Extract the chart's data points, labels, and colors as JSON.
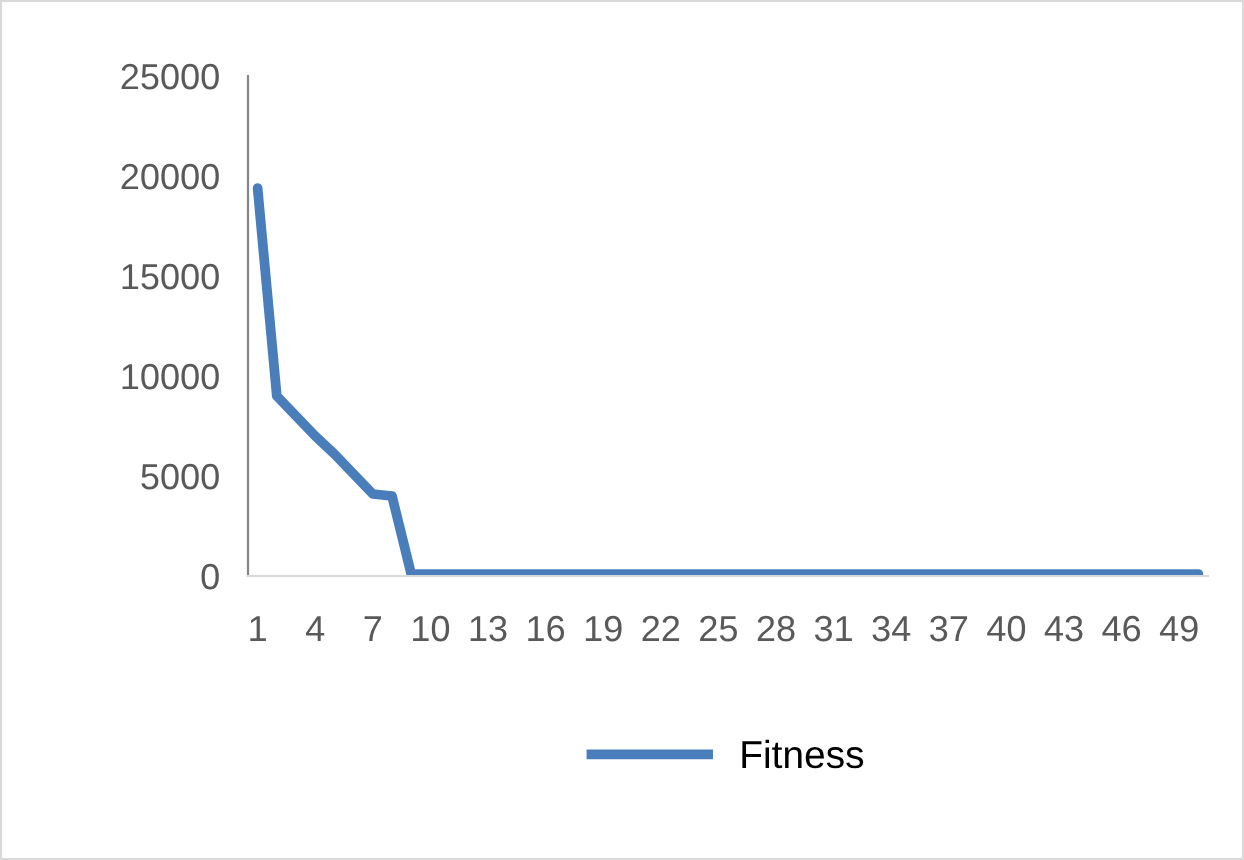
{
  "chart_data": {
    "type": "line",
    "categories": [
      "1",
      null,
      null,
      "4",
      null,
      null,
      "7",
      null,
      null,
      "10",
      null,
      null,
      "13",
      null,
      null,
      "16",
      null,
      null,
      "19",
      null,
      null,
      "22",
      null,
      null,
      "25",
      null,
      null,
      "28",
      null,
      null,
      "31",
      null,
      null,
      "34",
      null,
      null,
      "37",
      null,
      null,
      "40",
      null,
      null,
      "43",
      null,
      null,
      "46",
      null,
      null,
      "49",
      null
    ],
    "series": [
      {
        "name": "Fitness",
        "color": "#4a7ebb",
        "values": [
          19400,
          9000,
          8000,
          7000,
          6100,
          5100,
          4100,
          4000,
          100,
          100,
          100,
          100,
          100,
          100,
          100,
          100,
          100,
          100,
          100,
          100,
          100,
          100,
          100,
          100,
          100,
          100,
          100,
          100,
          100,
          100,
          100,
          100,
          100,
          100,
          100,
          100,
          100,
          100,
          100,
          100,
          100,
          100,
          100,
          100,
          100,
          100,
          100,
          100,
          100,
          100
        ]
      }
    ],
    "ylim": [
      0,
      25000
    ],
    "yticks": [
      0,
      5000,
      10000,
      15000,
      20000,
      25000
    ],
    "grid": false,
    "legend": "bottom",
    "marker": "none",
    "line_style": "solid"
  }
}
